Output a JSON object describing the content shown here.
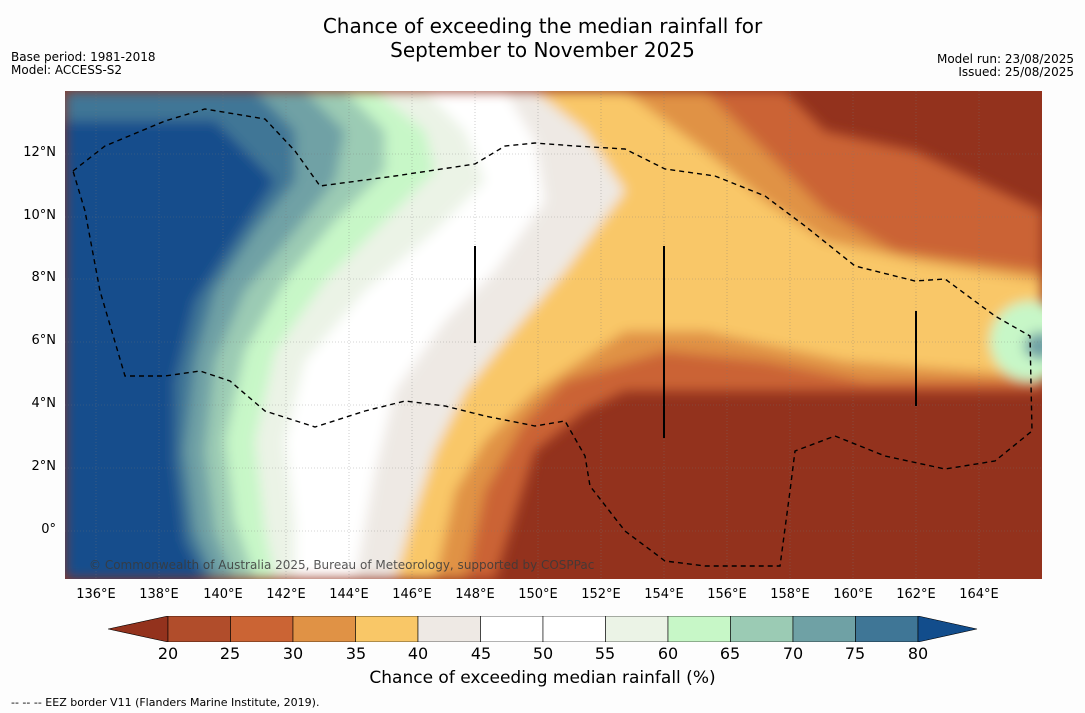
{
  "title": {
    "line1": "Chance of exceeding the median rainfall for",
    "line2": "September to November 2025"
  },
  "meta_left": {
    "base_period": "Base period: 1981-2018",
    "model": "Model: ACCESS-S2"
  },
  "meta_right": {
    "model_run": "Model run: 23/08/2025",
    "issued": "Issued: 25/08/2025"
  },
  "map": {
    "lat_labels": [
      "12°N",
      "10°N",
      "8°N",
      "6°N",
      "4°N",
      "2°N",
      "0°"
    ],
    "lon_labels": [
      "136°E",
      "138°E",
      "140°E",
      "142°E",
      "144°E",
      "146°E",
      "148°E",
      "150°E",
      "152°E",
      "154°E",
      "156°E",
      "158°E",
      "160°E",
      "162°E",
      "164°E"
    ],
    "copyright": "© Commonwealth of Australia 2025, Bureau of Meteorology, supported by COSPPac",
    "boundary_line": "EEZ border (dashed)"
  },
  "colorbar": {
    "ticks": [
      "20",
      "25",
      "30",
      "35",
      "40",
      "45",
      "50",
      "55",
      "60",
      "65",
      "70",
      "75",
      "80"
    ],
    "colors": [
      "#93321d",
      "#b14d2b",
      "#cb6434",
      "#e09245",
      "#f9c767",
      "#eee9e4",
      "#ffffff",
      "#ffffff",
      "#ebf3e6",
      "#c7f7c7",
      "#9bcbb4",
      "#6fa1a5",
      "#3f7696",
      "#124d8c"
    ],
    "label": "Chance of exceeding median rainfall (%)"
  },
  "footnote": "-- -- -- EEZ border V11 (Flanders Marine Institute, 2019)."
}
